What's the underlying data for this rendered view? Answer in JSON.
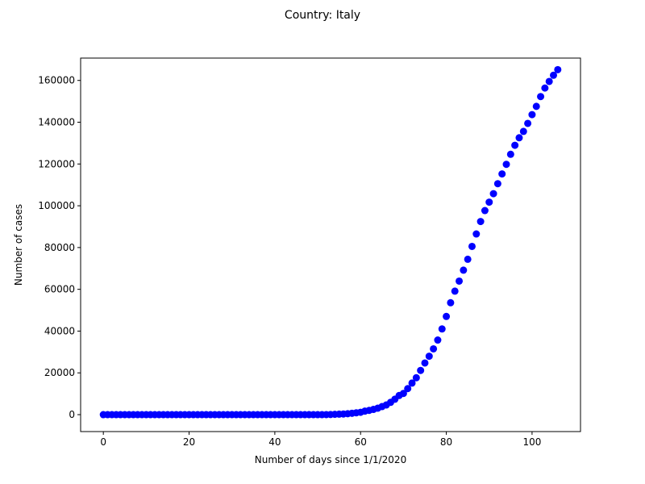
{
  "chart_data": {
    "type": "scatter",
    "title": "Country: Italy",
    "xlabel": "Number of days since 1/1/2020",
    "ylabel": "Number of cases",
    "xlim": [
      -5.3,
      111.3
    ],
    "ylim": [
      -8100,
      170700
    ],
    "xticks": [
      0,
      20,
      40,
      60,
      80,
      100
    ],
    "yticks": [
      0,
      20000,
      40000,
      60000,
      80000,
      100000,
      120000,
      140000,
      160000
    ],
    "grid": false,
    "legend": "none",
    "marker_color": "#0000ff",
    "series": [
      {
        "x": [
          0,
          1,
          2,
          3,
          4,
          5,
          6,
          7,
          8,
          9,
          10,
          11,
          12,
          13,
          14,
          15,
          16,
          17,
          18,
          19,
          20,
          21,
          22,
          23,
          24,
          25,
          26,
          27,
          28,
          29,
          30,
          31,
          32,
          33,
          34,
          35,
          36,
          37,
          38,
          39,
          40,
          41,
          42,
          43,
          44,
          45,
          46,
          47,
          48,
          49,
          50,
          51,
          52,
          53,
          54,
          55,
          56,
          57,
          58,
          59,
          60,
          61,
          62,
          63,
          64,
          65,
          66,
          67,
          68,
          69,
          70,
          71,
          72,
          73,
          74,
          75,
          76,
          77,
          78,
          79,
          80,
          81,
          82,
          83,
          84,
          85,
          86,
          87,
          88,
          89,
          90,
          91,
          92,
          93,
          94,
          95,
          96,
          97,
          98,
          99,
          100,
          101,
          102,
          103,
          104,
          105,
          106
        ],
        "y": [
          0,
          0,
          0,
          0,
          0,
          0,
          0,
          0,
          0,
          0,
          0,
          0,
          0,
          0,
          0,
          0,
          0,
          0,
          0,
          0,
          0,
          0,
          0,
          0,
          0,
          0,
          0,
          0,
          0,
          0,
          2,
          2,
          2,
          2,
          2,
          2,
          2,
          2,
          3,
          3,
          3,
          3,
          3,
          3,
          3,
          3,
          3,
          3,
          3,
          3,
          3,
          3,
          20,
          62,
          155,
          229,
          322,
          453,
          655,
          888,
          1128,
          1694,
          2036,
          2502,
          3089,
          3858,
          4636,
          5883,
          7375,
          9172,
          10149,
          12462,
          15113,
          17660,
          21157,
          24747,
          27980,
          31506,
          35713,
          41035,
          47021,
          53578,
          59138,
          63927,
          69176,
          74386,
          80539,
          86498,
          92472,
          97689,
          101739,
          105792,
          110574,
          115242,
          119827,
          124632,
          128948,
          132547,
          135586,
          139422,
          143626,
          147577,
          152271,
          156363,
          159516,
          162488,
          165155
        ]
      }
    ]
  }
}
